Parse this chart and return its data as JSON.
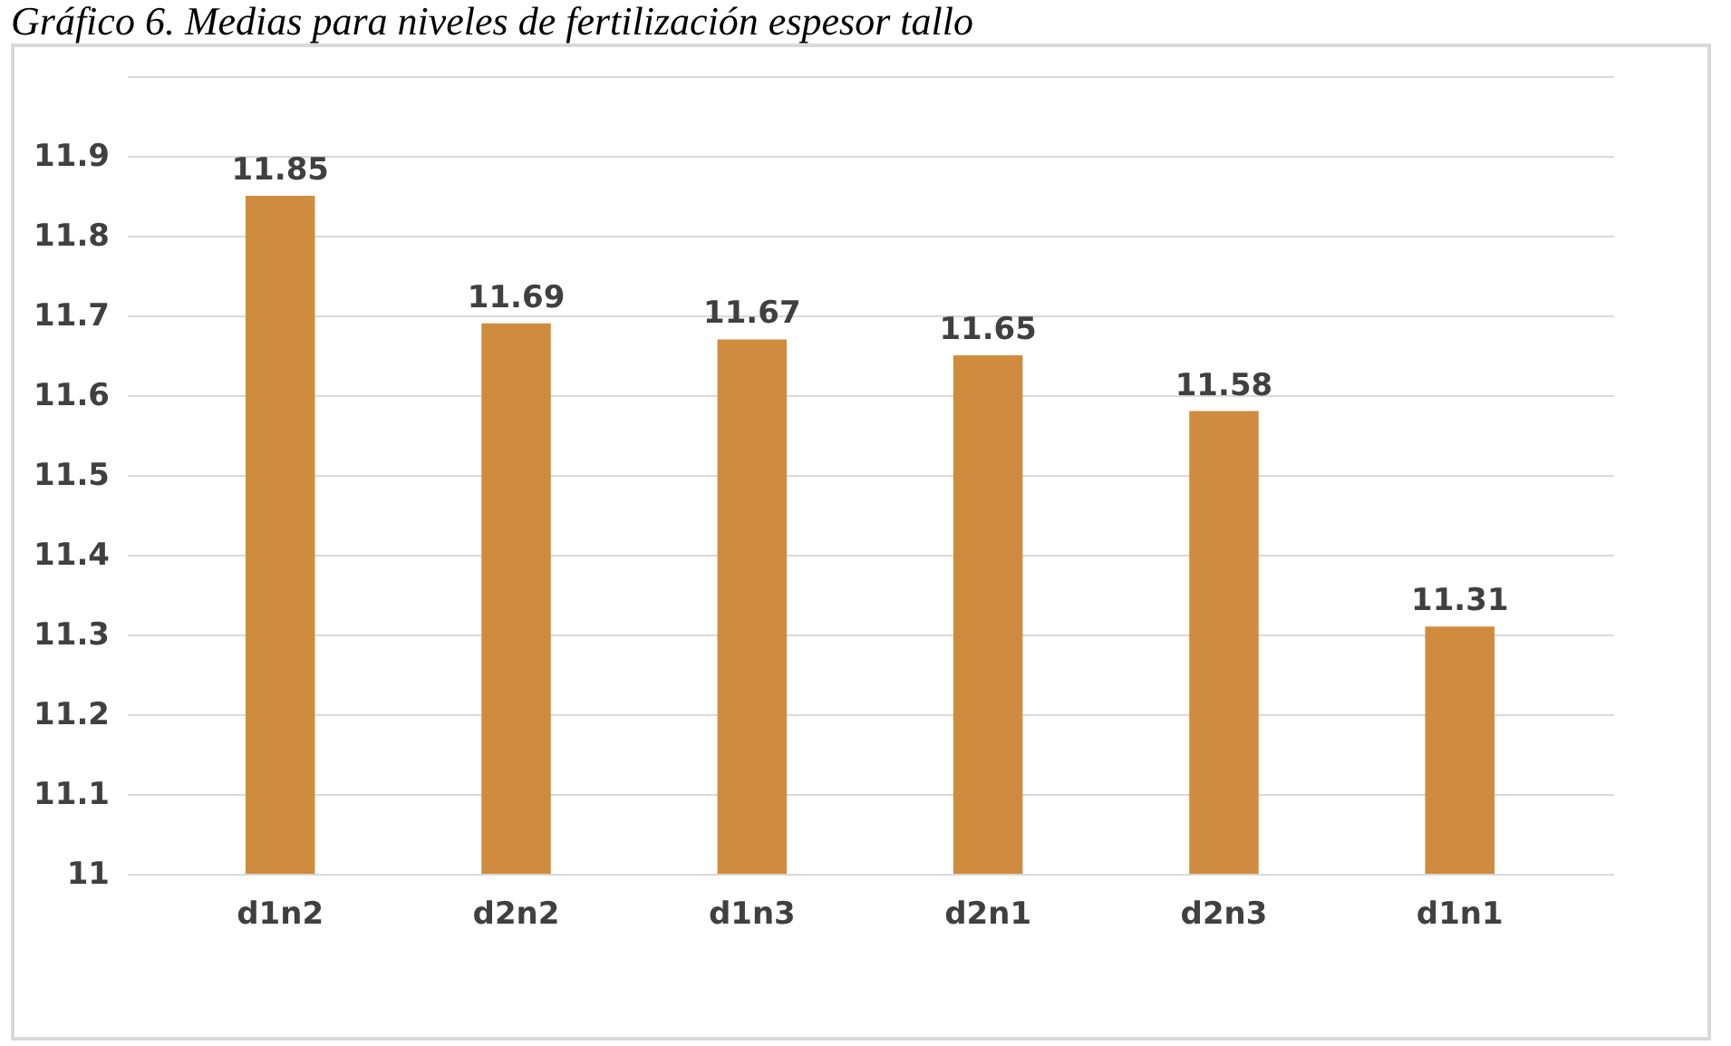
{
  "chart_data": {
    "type": "bar",
    "title": "Gráfico 6. Medias para niveles de fertilización espesor tallo",
    "categories": [
      "d1n2",
      "d2n2",
      "d1n3",
      "d2n1",
      "d2n3",
      "d1n1"
    ],
    "values": [
      11.85,
      11.69,
      11.67,
      11.65,
      11.58,
      11.31
    ],
    "color": "#d08c3e",
    "ylim": [
      11,
      12
    ],
    "yticks": [
      11,
      11.1,
      11.2,
      11.3,
      11.4,
      11.5,
      11.6,
      11.7,
      11.8,
      11.9,
      {
        "value": 12,
        "label": null
      }
    ],
    "grid": "y",
    "data_labels": true
  }
}
